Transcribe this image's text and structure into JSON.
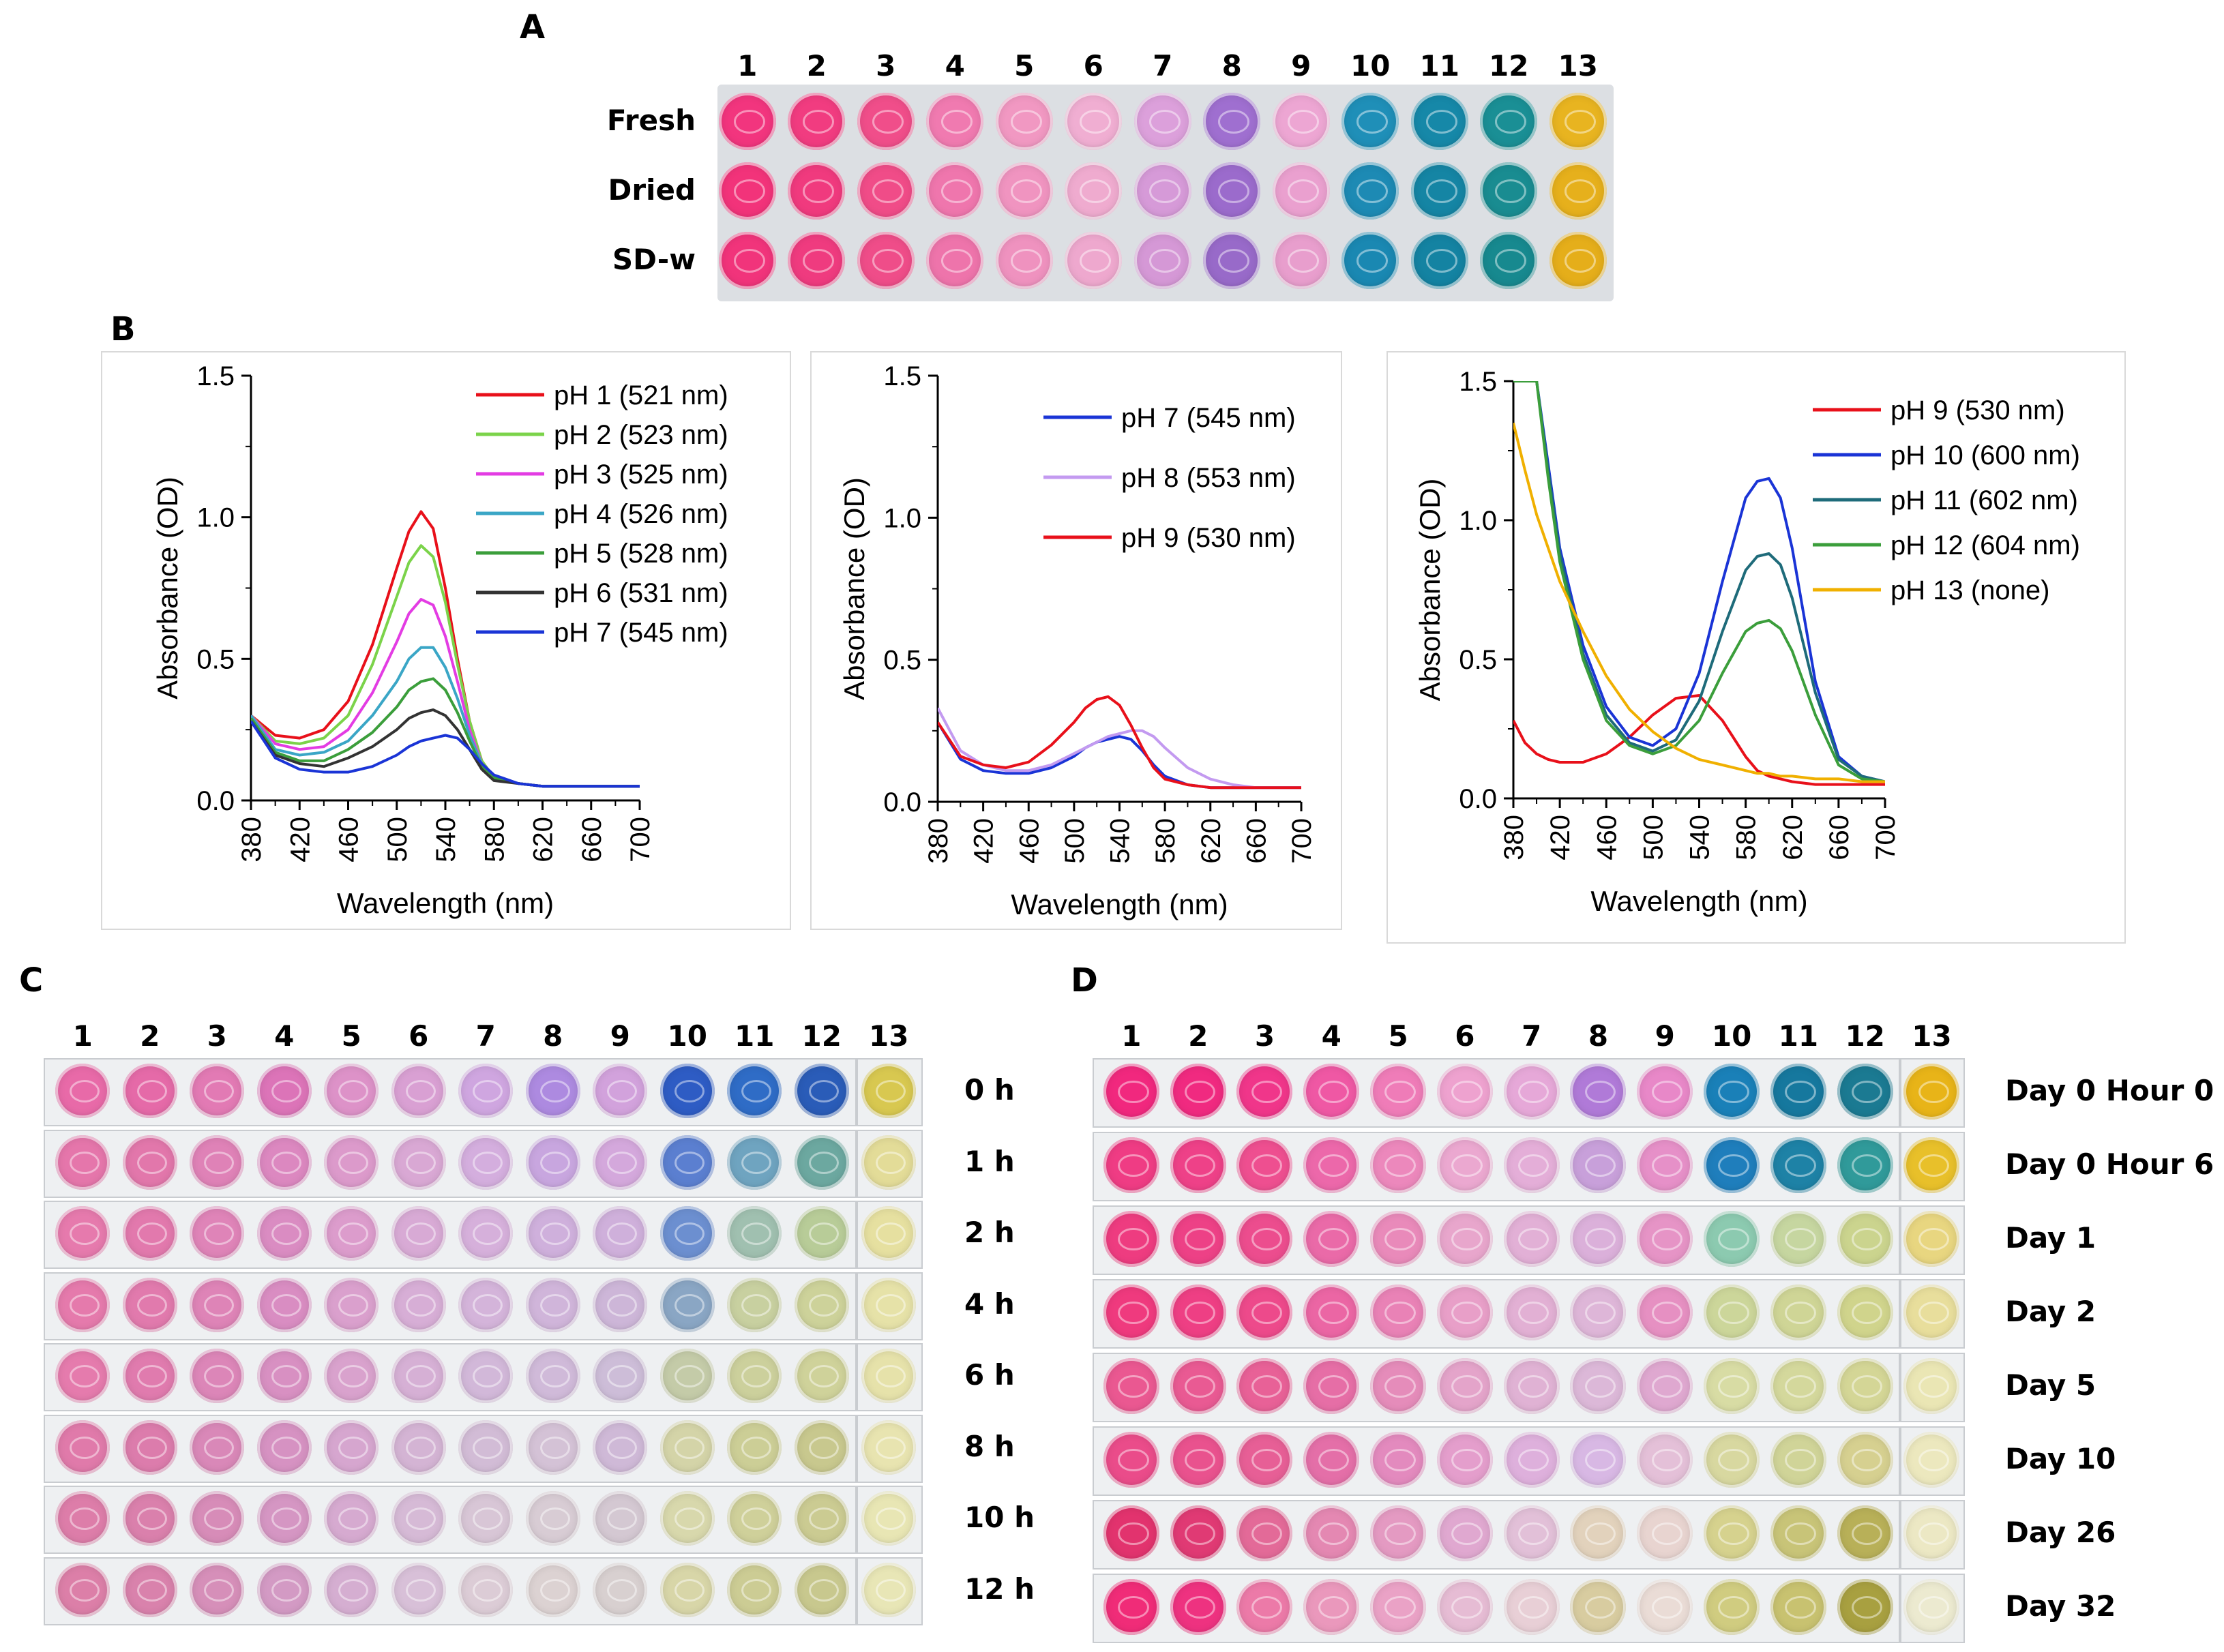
{
  "panels": {
    "a": "A",
    "b": "B",
    "c": "C",
    "d": "D"
  },
  "plate_a": {
    "columns": [
      "1",
      "2",
      "3",
      "4",
      "5",
      "6",
      "7",
      "8",
      "9",
      "10",
      "11",
      "12",
      "13"
    ],
    "rows": [
      {
        "label": "Fresh",
        "colors": [
          "#f2357e",
          "#f13c80",
          "#f04e8a",
          "#f07ab0",
          "#f198c2",
          "#f0aed2",
          "#dca0db",
          "#9f6fd0",
          "#eda6d3",
          "#1f8fb8",
          "#1688a8",
          "#1a8f95",
          "#e8b420"
        ]
      },
      {
        "label": "Dried",
        "colors": [
          "#f2337a",
          "#f03a7e",
          "#f04c88",
          "#ef76ad",
          "#f094c0",
          "#efabcf",
          "#d69ad8",
          "#9b6bcc",
          "#eaa0cf",
          "#1d8ab4",
          "#1585a4",
          "#198c91",
          "#e6b01c"
        ]
      },
      {
        "label": "SD-w",
        "colors": [
          "#f1347b",
          "#ef3b7f",
          "#ef4d89",
          "#ee74ab",
          "#ef92bf",
          "#eea8ce",
          "#d598d6",
          "#986ac9",
          "#e89ecd",
          "#1a88b2",
          "#1483a2",
          "#17898f",
          "#e5ae1a"
        ]
      }
    ]
  },
  "plate_c": {
    "columns": [
      "1",
      "2",
      "3",
      "4",
      "5",
      "6",
      "7",
      "8",
      "9",
      "10",
      "11",
      "12",
      "13"
    ],
    "rows": [
      {
        "label": "0 h",
        "colors": [
          "#e86aa8",
          "#e56aa8",
          "#e27ab4",
          "#dc74b8",
          "#dd92c8",
          "#d9a0d3",
          "#cfa6e0",
          "#ad8ae0",
          "#d2a2dc",
          "#2e5cc4",
          "#2f6cc6",
          "#2a5cb8",
          "#d8c850"
        ]
      },
      {
        "label": "1 h",
        "colors": [
          "#e576ab",
          "#e277ab",
          "#df82b7",
          "#dc88c0",
          "#dc9acb",
          "#d9a8d4",
          "#d4aede",
          "#c8a6df",
          "#d4a8dc",
          "#5b7fd0",
          "#6fa4c0",
          "#6ca8a0",
          "#e3dc98"
        ]
      },
      {
        "label": "2 h",
        "colors": [
          "#e67aad",
          "#e279ad",
          "#df84b8",
          "#da8cc2",
          "#dc9ccc",
          "#d8aad5",
          "#d6b0db",
          "#cfb0dc",
          "#cfb0db",
          "#6c8fd0",
          "#a0c0b0",
          "#b8cc98",
          "#e6e0a0"
        ]
      },
      {
        "label": "4 h",
        "colors": [
          "#e57aac",
          "#e17aad",
          "#de84b7",
          "#d98dc2",
          "#daa0cd",
          "#d7aed6",
          "#d4b4da",
          "#d0b5da",
          "#cdb6d8",
          "#8aa6c4",
          "#c8d0a0",
          "#cdd29a",
          "#e6e2a8"
        ]
      },
      {
        "label": "6 h",
        "colors": [
          "#e57bad",
          "#e07bae",
          "#dc86b8",
          "#d890c2",
          "#d9a2cd",
          "#d6b0d5",
          "#d2b8d9",
          "#d0bad9",
          "#cdbdd8",
          "#c4cba8",
          "#ccd09c",
          "#cfd29a",
          "#e6e2aa"
        ]
      },
      {
        "label": "8 h",
        "colors": [
          "#e07aaa",
          "#dc7cac",
          "#d988b8",
          "#d692c2",
          "#d6a6cf",
          "#d4b4d4",
          "#d2bcd6",
          "#d4c2d6",
          "#cfb9d7",
          "#d4d4a8",
          "#ccce96",
          "#c8c88e",
          "#e8e4b0"
        ]
      },
      {
        "label": "10 h",
        "colors": [
          "#dd7da9",
          "#da80ac",
          "#d78cb8",
          "#d596c3",
          "#d6aad0",
          "#d6bad6",
          "#d8c6d6",
          "#d8ccd4",
          "#d4c8d2",
          "#d8d8ac",
          "#cfd09a",
          "#cbcb92",
          "#e8e6b4"
        ]
      },
      {
        "label": "12 h",
        "colors": [
          "#dc7fa8",
          "#d982ac",
          "#d68fb9",
          "#d39ac4",
          "#d5aed1",
          "#d8c0d8",
          "#dcccd6",
          "#dcd2d2",
          "#d8d0d0",
          "#d8d6a8",
          "#cccc94",
          "#c8c88e",
          "#e8e6b6"
        ]
      }
    ]
  },
  "plate_d": {
    "columns": [
      "1",
      "2",
      "3",
      "4",
      "5",
      "6",
      "7",
      "8",
      "9",
      "10",
      "11",
      "12",
      "13"
    ],
    "rows": [
      {
        "label": "Day 0 Hour 0",
        "colors": [
          "#f1287e",
          "#f02a80",
          "#f0368a",
          "#ef58a4",
          "#ef7cb8",
          "#eea2cf",
          "#e6a8d8",
          "#b07ad8",
          "#e888c8",
          "#1a80b8",
          "#16789e",
          "#1b7a92",
          "#e8b418"
        ]
      },
      {
        "label": "Day 0 Hour 6",
        "colors": [
          "#ef3c84",
          "#ee4188",
          "#ee4f90",
          "#ec68aa",
          "#ec88bc",
          "#eba8d0",
          "#e4aed8",
          "#c8a0da",
          "#e690c8",
          "#1f7ebc",
          "#1e82a6",
          "#309a9a",
          "#e8c02a"
        ]
      },
      {
        "label": "Day 1",
        "colors": [
          "#ee3c80",
          "#ed4186",
          "#ec4d8e",
          "#ea6aa8",
          "#e98aba",
          "#e8a6cc",
          "#e2b0d6",
          "#dbb0da",
          "#e694c6",
          "#8ccab0",
          "#c6d6a0",
          "#cbd48e",
          "#e8d680"
        ]
      },
      {
        "label": "Day 2",
        "colors": [
          "#ef3a7e",
          "#ee3f84",
          "#ed4a8b",
          "#eb66a4",
          "#e982b6",
          "#e89fc8",
          "#e2b0d4",
          "#deb6d8",
          "#e690c2",
          "#ccd69a",
          "#cfd596",
          "#d0d48c",
          "#e8de9c"
        ]
      },
      {
        "label": "Day 5",
        "colors": [
          "#ea5891",
          "#e95a93",
          "#e86197",
          "#e66ea6",
          "#e58cba",
          "#e4a4ca",
          "#e0b2d4",
          "#dcb8d8",
          "#dfa8d0",
          "#d8dca4",
          "#d4d89c",
          "#d4d696",
          "#eae6b4"
        ]
      },
      {
        "label": "Day 10",
        "colors": [
          "#ea4c8a",
          "#e9528e",
          "#e75f96",
          "#e46fa8",
          "#e38abe",
          "#e49ecc",
          "#deb0dc",
          "#d8b8e4",
          "#e4c0d8",
          "#d8d8a0",
          "#d0d498",
          "#d6d090",
          "#ece8be"
        ]
      },
      {
        "label": "Day 26",
        "colors": [
          "#e2336e",
          "#e03a74",
          "#e36a98",
          "#e488b2",
          "#e49ac2",
          "#e0a8d0",
          "#e2c0d8",
          "#e2d2bc",
          "#e8d4d0",
          "#d6d28e",
          "#c8c478",
          "#b8b058",
          "#ece8c4"
        ]
      },
      {
        "label": "Day 32",
        "colors": [
          "#f02c78",
          "#ee3280",
          "#ec7aa8",
          "#ea98bc",
          "#eaa2c6",
          "#e6bcd4",
          "#e8cfd6",
          "#d8cca0",
          "#eadcd6",
          "#d0cc80",
          "#c8c270",
          "#a8a040",
          "#ecead0"
        ]
      }
    ]
  },
  "chart_data": [
    {
      "type": "line",
      "xlabel": "Wavelength (nm)",
      "ylabel": "Absorbance (OD)",
      "xlim": [
        380,
        700
      ],
      "ylim": [
        0,
        1.5
      ],
      "xticks": [
        "380",
        "420",
        "460",
        "500",
        "540",
        "580",
        "620",
        "660",
        "700"
      ],
      "yticks": [
        "0.0",
        "0.5",
        "1.0",
        "1.5"
      ],
      "x": [
        380,
        400,
        420,
        440,
        460,
        480,
        500,
        510,
        520,
        530,
        540,
        550,
        560,
        570,
        580,
        600,
        620,
        640,
        660,
        680,
        700
      ],
      "series": [
        {
          "name": "pH 1 (521 nm)",
          "color": "#e8101a",
          "values": [
            0.3,
            0.23,
            0.22,
            0.25,
            0.35,
            0.55,
            0.82,
            0.95,
            1.02,
            0.96,
            0.75,
            0.5,
            0.28,
            0.14,
            0.08,
            0.06,
            0.05,
            0.05,
            0.05,
            0.05,
            0.05
          ]
        },
        {
          "name": "pH 2 (523 nm)",
          "color": "#7bd34a",
          "values": [
            0.3,
            0.21,
            0.2,
            0.22,
            0.3,
            0.48,
            0.72,
            0.84,
            0.9,
            0.86,
            0.7,
            0.48,
            0.28,
            0.14,
            0.08,
            0.06,
            0.05,
            0.05,
            0.05,
            0.05,
            0.05
          ]
        },
        {
          "name": "pH 3 (525 nm)",
          "color": "#e33ce3",
          "values": [
            0.3,
            0.2,
            0.18,
            0.19,
            0.25,
            0.38,
            0.56,
            0.66,
            0.71,
            0.69,
            0.58,
            0.42,
            0.25,
            0.13,
            0.08,
            0.06,
            0.05,
            0.05,
            0.05,
            0.05,
            0.05
          ]
        },
        {
          "name": "pH 4 (526 nm)",
          "color": "#3aa6c6",
          "values": [
            0.3,
            0.18,
            0.16,
            0.17,
            0.21,
            0.3,
            0.42,
            0.5,
            0.54,
            0.54,
            0.47,
            0.36,
            0.23,
            0.13,
            0.08,
            0.06,
            0.05,
            0.05,
            0.05,
            0.05,
            0.05
          ]
        },
        {
          "name": "pH 5 (528 nm)",
          "color": "#3b9e3b",
          "values": [
            0.29,
            0.17,
            0.14,
            0.14,
            0.18,
            0.24,
            0.33,
            0.39,
            0.42,
            0.43,
            0.39,
            0.31,
            0.21,
            0.12,
            0.08,
            0.06,
            0.05,
            0.05,
            0.05,
            0.05,
            0.05
          ]
        },
        {
          "name": "pH 6 (531 nm)",
          "color": "#333333",
          "values": [
            0.28,
            0.16,
            0.13,
            0.12,
            0.15,
            0.19,
            0.25,
            0.29,
            0.31,
            0.32,
            0.3,
            0.25,
            0.18,
            0.11,
            0.07,
            0.06,
            0.05,
            0.05,
            0.05,
            0.05,
            0.05
          ]
        },
        {
          "name": "pH 7 (545 nm)",
          "color": "#1a34d6",
          "values": [
            0.28,
            0.15,
            0.11,
            0.1,
            0.1,
            0.12,
            0.16,
            0.19,
            0.21,
            0.22,
            0.23,
            0.22,
            0.18,
            0.13,
            0.09,
            0.06,
            0.05,
            0.05,
            0.05,
            0.05,
            0.05
          ]
        }
      ],
      "legend": "top-right"
    },
    {
      "type": "line",
      "xlabel": "Wavelength (nm)",
      "ylabel": "Absorbance (OD)",
      "xlim": [
        380,
        700
      ],
      "ylim": [
        0,
        1.5
      ],
      "xticks": [
        "380",
        "420",
        "460",
        "500",
        "540",
        "580",
        "620",
        "660",
        "700"
      ],
      "yticks": [
        "0.0",
        "0.5",
        "1.0",
        "1.5"
      ],
      "x": [
        380,
        400,
        420,
        440,
        460,
        480,
        500,
        510,
        520,
        530,
        540,
        550,
        560,
        570,
        580,
        600,
        620,
        640,
        660,
        680,
        700
      ],
      "series": [
        {
          "name": "pH 7 (545 nm)",
          "color": "#1a34d6",
          "values": [
            0.28,
            0.15,
            0.11,
            0.1,
            0.1,
            0.12,
            0.16,
            0.19,
            0.21,
            0.22,
            0.23,
            0.22,
            0.18,
            0.13,
            0.09,
            0.06,
            0.05,
            0.05,
            0.05,
            0.05,
            0.05
          ]
        },
        {
          "name": "pH 8 (553 nm)",
          "color": "#c39af0",
          "values": [
            0.33,
            0.18,
            0.13,
            0.11,
            0.11,
            0.13,
            0.17,
            0.19,
            0.21,
            0.23,
            0.24,
            0.25,
            0.25,
            0.23,
            0.19,
            0.12,
            0.08,
            0.06,
            0.05,
            0.05,
            0.05
          ]
        },
        {
          "name": "pH 9 (530 nm)",
          "color": "#e8101a",
          "values": [
            0.28,
            0.16,
            0.13,
            0.12,
            0.14,
            0.2,
            0.28,
            0.33,
            0.36,
            0.37,
            0.34,
            0.27,
            0.19,
            0.12,
            0.08,
            0.06,
            0.05,
            0.05,
            0.05,
            0.05,
            0.05
          ]
        }
      ],
      "legend": "top-right"
    },
    {
      "type": "line",
      "xlabel": "Wavelength (nm)",
      "ylabel": "Absorbance (OD)",
      "xlim": [
        380,
        700
      ],
      "ylim": [
        0,
        1.5
      ],
      "xticks": [
        "380",
        "420",
        "460",
        "500",
        "540",
        "580",
        "620",
        "660",
        "700"
      ],
      "yticks": [
        "0.0",
        "0.5",
        "1.0",
        "1.5"
      ],
      "x": [
        380,
        390,
        400,
        410,
        420,
        440,
        460,
        480,
        500,
        520,
        540,
        560,
        580,
        590,
        600,
        610,
        620,
        640,
        660,
        680,
        700
      ],
      "series": [
        {
          "name": "pH 9 (530 nm)",
          "color": "#e8101a",
          "values": [
            0.28,
            0.2,
            0.16,
            0.14,
            0.13,
            0.13,
            0.16,
            0.22,
            0.3,
            0.36,
            0.37,
            0.28,
            0.15,
            0.1,
            0.08,
            0.07,
            0.06,
            0.05,
            0.05,
            0.05,
            0.05
          ]
        },
        {
          "name": "pH 10 (600 nm)",
          "color": "#1a34d6",
          "values": [
            1.5,
            1.5,
            1.5,
            1.2,
            0.9,
            0.55,
            0.33,
            0.22,
            0.19,
            0.25,
            0.45,
            0.78,
            1.08,
            1.14,
            1.15,
            1.08,
            0.9,
            0.42,
            0.15,
            0.08,
            0.06
          ]
        },
        {
          "name": "pH 11 (602 nm)",
          "color": "#1e6b7a",
          "values": [
            1.5,
            1.5,
            1.5,
            1.18,
            0.88,
            0.52,
            0.3,
            0.2,
            0.17,
            0.21,
            0.35,
            0.6,
            0.82,
            0.87,
            0.88,
            0.84,
            0.72,
            0.38,
            0.14,
            0.08,
            0.06
          ]
        },
        {
          "name": "pH 12 (604 nm)",
          "color": "#3b9e3b",
          "values": [
            1.5,
            1.5,
            1.5,
            1.15,
            0.85,
            0.5,
            0.28,
            0.19,
            0.16,
            0.19,
            0.28,
            0.45,
            0.6,
            0.63,
            0.64,
            0.61,
            0.53,
            0.3,
            0.12,
            0.07,
            0.06
          ]
        },
        {
          "name": "pH 13 (none)",
          "color": "#f0b000",
          "values": [
            1.35,
            1.18,
            1.02,
            0.9,
            0.78,
            0.6,
            0.44,
            0.32,
            0.24,
            0.18,
            0.14,
            0.12,
            0.1,
            0.09,
            0.09,
            0.08,
            0.08,
            0.07,
            0.07,
            0.06,
            0.06
          ]
        }
      ],
      "legend": "top-right"
    }
  ]
}
